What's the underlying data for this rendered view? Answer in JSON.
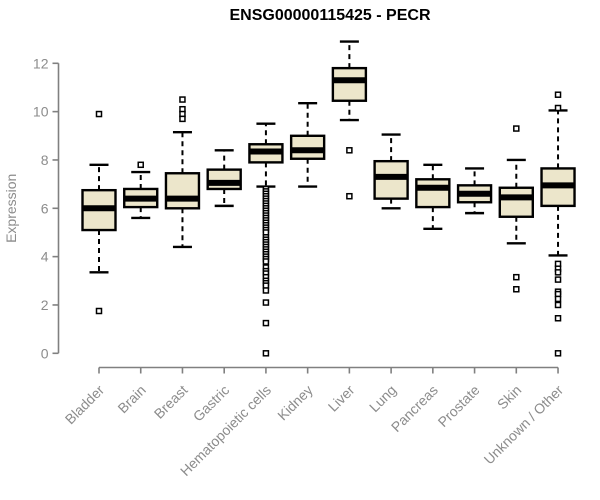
{
  "page": {
    "background": "#ffffff"
  },
  "chart_data": {
    "type": "boxplot",
    "title": "ENSG00000115425 - PECR",
    "ylabel": "Expression",
    "xlabel": "",
    "yticks": [
      0,
      2,
      4,
      6,
      8,
      10,
      12
    ],
    "ylim": [
      0,
      13
    ],
    "grid": false,
    "legend": "none",
    "categories": [
      "Bladder",
      "Brain",
      "Breast",
      "Gastric",
      "Hematopoietic cells",
      "Kidney",
      "Liver",
      "Lung",
      "Pancreas",
      "Prostate",
      "Skin",
      "Unknown / Other"
    ],
    "boxes": [
      {
        "name": "Bladder",
        "whisker_low": 3.35,
        "q1": 5.1,
        "median": 6.0,
        "q3": 6.75,
        "whisker_high": 7.8,
        "outliers": [
          9.9,
          1.75
        ]
      },
      {
        "name": "Brain",
        "whisker_low": 5.6,
        "q1": 6.05,
        "median": 6.4,
        "q3": 6.8,
        "whisker_high": 7.5,
        "outliers": [
          7.8
        ]
      },
      {
        "name": "Breast",
        "whisker_low": 4.4,
        "q1": 6.0,
        "median": 6.4,
        "q3": 7.45,
        "whisker_high": 9.15,
        "outliers": [
          10.5,
          10.1,
          9.9,
          9.7
        ]
      },
      {
        "name": "Gastric",
        "whisker_low": 6.1,
        "q1": 6.8,
        "median": 7.05,
        "q3": 7.6,
        "whisker_high": 8.4,
        "outliers": []
      },
      {
        "name": "Hematopoietic cells",
        "whisker_low": 6.9,
        "q1": 7.9,
        "median": 8.35,
        "q3": 8.65,
        "whisker_high": 9.5,
        "outliers": [
          6.8,
          6.7,
          6.6,
          6.5,
          6.4,
          6.3,
          6.2,
          6.1,
          6.0,
          5.9,
          5.8,
          5.7,
          5.6,
          5.5,
          5.4,
          5.3,
          5.2,
          5.1,
          5.0,
          4.8,
          4.7,
          4.6,
          4.5,
          4.4,
          4.3,
          4.2,
          4.1,
          4.0,
          3.9,
          3.8,
          3.55,
          3.4,
          3.3,
          3.15,
          3.0,
          2.9,
          2.8,
          2.6,
          2.1,
          1.25,
          0.0
        ]
      },
      {
        "name": "Kidney",
        "whisker_low": 6.9,
        "q1": 8.05,
        "median": 8.4,
        "q3": 9.0,
        "whisker_high": 10.35,
        "outliers": []
      },
      {
        "name": "Liver",
        "whisker_low": 9.65,
        "q1": 10.45,
        "median": 11.3,
        "q3": 11.8,
        "whisker_high": 12.9,
        "outliers": [
          8.4,
          6.5
        ]
      },
      {
        "name": "Lung",
        "whisker_low": 6.0,
        "q1": 6.4,
        "median": 7.3,
        "q3": 7.95,
        "whisker_high": 9.05,
        "outliers": []
      },
      {
        "name": "Pancreas",
        "whisker_low": 5.15,
        "q1": 6.05,
        "median": 6.85,
        "q3": 7.2,
        "whisker_high": 7.8,
        "outliers": []
      },
      {
        "name": "Prostate",
        "whisker_low": 5.8,
        "q1": 6.25,
        "median": 6.6,
        "q3": 6.95,
        "whisker_high": 7.65,
        "outliers": []
      },
      {
        "name": "Skin",
        "whisker_low": 4.55,
        "q1": 5.65,
        "median": 6.45,
        "q3": 6.85,
        "whisker_high": 8.0,
        "outliers": [
          9.3,
          3.15,
          2.65
        ]
      },
      {
        "name": "Unknown / Other",
        "whisker_low": 4.05,
        "q1": 6.1,
        "median": 6.95,
        "q3": 7.65,
        "whisker_high": 10.05,
        "outliers": [
          10.7,
          10.15,
          3.7,
          3.5,
          3.35,
          3.05,
          2.55,
          2.45,
          2.25,
          2.0,
          1.45,
          0.0
        ]
      }
    ],
    "colors": {
      "box_fill": "#ECE6CB",
      "box_stroke": "#000000",
      "median": "#000000",
      "axis": "#808080",
      "axis_text": "#8C8C8C",
      "title_text": "#000000",
      "outlier_fill": "#FFFFFF"
    }
  }
}
